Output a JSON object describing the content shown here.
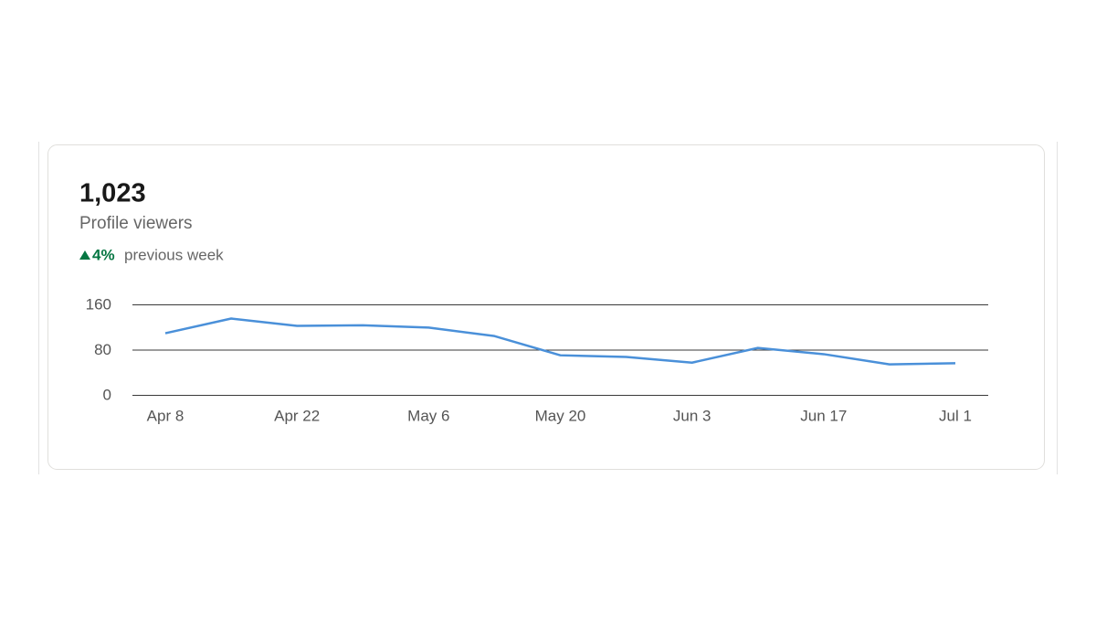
{
  "stat": {
    "value": "1,023",
    "label": "Profile viewers",
    "change": "4%",
    "change_text": "previous week"
  },
  "chart_data": {
    "type": "line",
    "categories": [
      "Apr 8",
      null,
      "Apr 22",
      null,
      "May 6",
      null,
      "May 20",
      null,
      "Jun 3",
      null,
      "Jun 17",
      null,
      "Jul 1"
    ],
    "values": [
      109,
      135,
      122,
      123,
      119,
      104,
      70,
      67,
      57,
      83,
      72,
      54,
      56
    ],
    "color": "#4a90d9",
    "ylim": [
      0,
      160
    ],
    "yticks": [
      0,
      80,
      160
    ],
    "grid": true
  }
}
